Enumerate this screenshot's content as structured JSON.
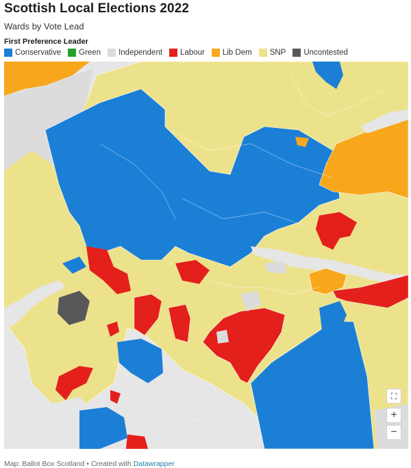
{
  "header": {
    "title": "Scottish Local Elections 2022",
    "subtitle": "Wards by Vote Lead"
  },
  "legend": {
    "title": "First Preference Leader",
    "items": [
      {
        "label": "Conservative",
        "color": "#1c7fd6"
      },
      {
        "label": "Green",
        "color": "#2aa02b"
      },
      {
        "label": "Independent",
        "color": "#dcdcdc"
      },
      {
        "label": "Labour",
        "color": "#e3201c"
      },
      {
        "label": "Lib Dem",
        "color": "#f8a71d"
      },
      {
        "label": "SNP",
        "color": "#ede28c"
      },
      {
        "label": "Uncontested",
        "color": "#58585a"
      }
    ]
  },
  "map_controls": {
    "fullscreen_icon": "fullscreen-icon",
    "zoom_in": "+",
    "zoom_out": "−"
  },
  "footer": {
    "prefix": "Map: Ballot Box Scotland • Created with ",
    "link": "Datawrapper"
  }
}
